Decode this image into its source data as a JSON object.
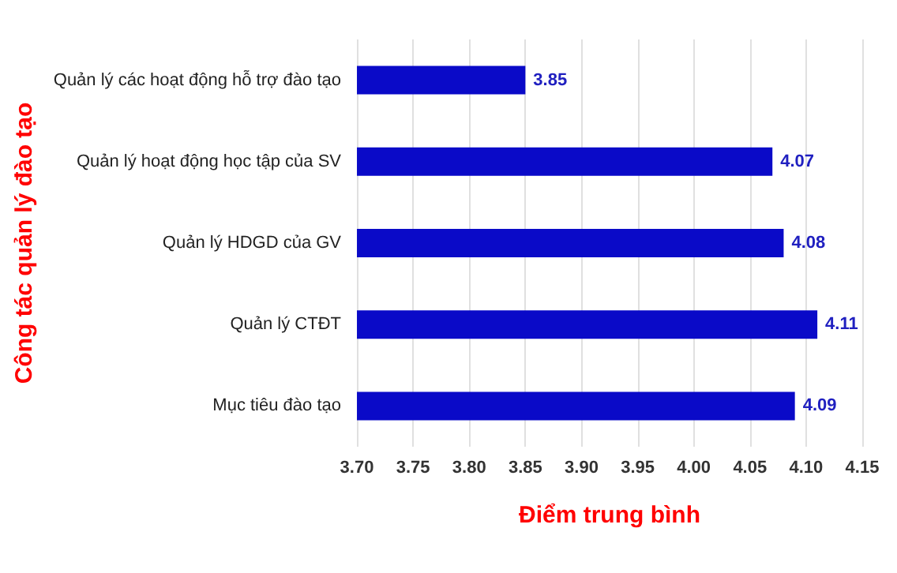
{
  "chart_data": {
    "type": "bar",
    "orientation": "horizontal",
    "xlabel": "Điểm trung bình",
    "ylabel": "Công tác quản lý đào tạo",
    "categories": [
      "Quản lý các hoạt động hỗ trợ đào tạo",
      "Quản lý hoạt động học tập của SV",
      "Quản lý HDGD của GV",
      "Quản lý CTĐT",
      "Mục tiêu đào tạo"
    ],
    "values": [
      3.85,
      4.07,
      4.08,
      4.11,
      4.09
    ],
    "color": "#0a0ac8",
    "xlim": [
      3.7,
      4.15
    ],
    "xticks": [
      {
        "value": 3.7,
        "label": "3.70"
      },
      {
        "value": 3.75,
        "label": "3.75"
      },
      {
        "value": 3.8,
        "label": "3.80"
      },
      {
        "value": 3.85,
        "label": "3.85"
      },
      {
        "value": 3.9,
        "label": "3.90"
      },
      {
        "value": 3.95,
        "label": "3.95"
      },
      {
        "value": 4.0,
        "label": "4.00"
      },
      {
        "value": 4.05,
        "label": "4.05"
      },
      {
        "value": 4.1,
        "label": "4.10"
      },
      {
        "value": 4.15,
        "label": "4.15"
      }
    ],
    "grid": "x",
    "data_labels": true
  }
}
